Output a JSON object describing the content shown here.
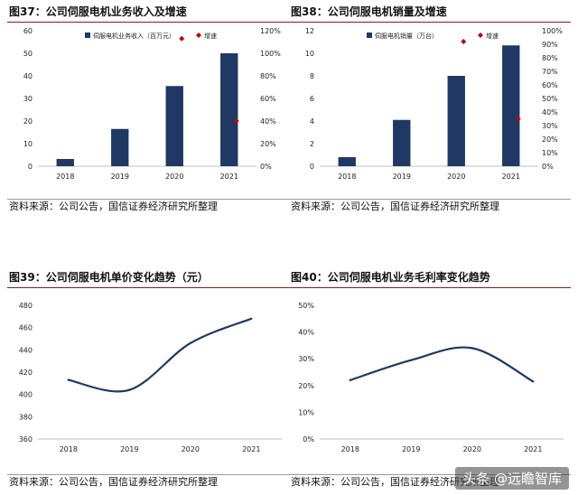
{
  "source_text": "资料来源：公司公告，国信证券经济研究所整理",
  "watermark": "头条 @远瞻智库",
  "colors": {
    "bar": "#1f3864",
    "marker": "#c00000",
    "line": "#1f3864",
    "axis": "#bfbfbf",
    "title_rule": "#8b1a1a"
  },
  "chart_data": [
    {
      "title": "图37：公司伺服电机业务收入及增速",
      "type": "bar",
      "categories": [
        "2018",
        "2019",
        "2020",
        "2021"
      ],
      "series": [
        {
          "name": "伺服电机业务收入（百万元）",
          "type": "bar",
          "axis": "left",
          "values": [
            3.2,
            16.5,
            35.5,
            50
          ]
        },
        {
          "name": "增速",
          "type": "scatter",
          "axis": "right",
          "values": [
            null,
            null,
            113,
            40
          ]
        }
      ],
      "ylim": [
        0,
        60
      ],
      "yticks": [
        0,
        10,
        20,
        30,
        40,
        50,
        60
      ],
      "y2lim": [
        0,
        120
      ],
      "y2ticks": [
        "0%",
        "20%",
        "40%",
        "60%",
        "80%",
        "100%",
        "120%"
      ],
      "legend_position": "top-center"
    },
    {
      "title": "图38：公司伺服电机销量及增速",
      "type": "bar",
      "categories": [
        "2018",
        "2019",
        "2020",
        "2021"
      ],
      "series": [
        {
          "name": "伺服电机销量（万台）",
          "type": "bar",
          "axis": "left",
          "values": [
            0.8,
            4.1,
            8.0,
            10.7
          ]
        },
        {
          "name": "增速",
          "type": "scatter",
          "axis": "right",
          "values": [
            null,
            null,
            92,
            35
          ]
        }
      ],
      "ylim": [
        0,
        12
      ],
      "yticks": [
        0,
        2,
        4,
        6,
        8,
        10,
        12
      ],
      "y2lim": [
        0,
        100
      ],
      "y2ticks": [
        "0%",
        "10%",
        "20%",
        "30%",
        "40%",
        "50%",
        "60%",
        "70%",
        "80%",
        "90%",
        "100%"
      ],
      "legend_position": "top-center"
    },
    {
      "title": "图39：公司伺服电机单价变化趋势（元）",
      "type": "line",
      "categories": [
        "2018",
        "2019",
        "2020",
        "2021"
      ],
      "series": [
        {
          "values": [
            413,
            404,
            446,
            468
          ]
        }
      ],
      "ylim": [
        360,
        480
      ],
      "yticks": [
        360,
        380,
        400,
        420,
        440,
        460,
        480
      ]
    },
    {
      "title": "图40：公司伺服电机业务毛利率变化趋势",
      "type": "line",
      "categories": [
        "2018",
        "2019",
        "2020",
        "2021"
      ],
      "series": [
        {
          "values": [
            22,
            29.5,
            34,
            21.5
          ]
        }
      ],
      "ylim": [
        0,
        50
      ],
      "yticks": [
        "0%",
        "10%",
        "20%",
        "30%",
        "40%",
        "50%"
      ]
    }
  ]
}
